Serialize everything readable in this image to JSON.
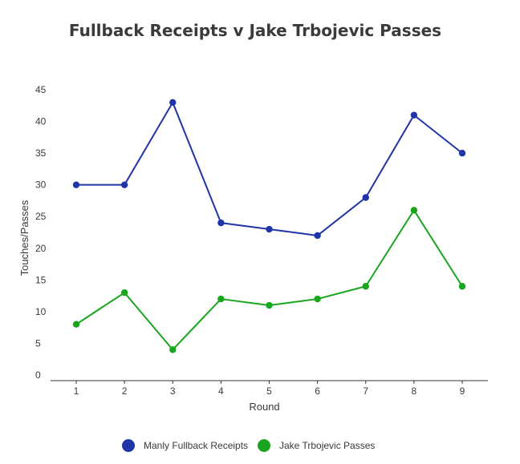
{
  "chart_data": {
    "type": "line",
    "title": "Fullback Receipts v Jake Trbojevic Passes",
    "xlabel": "Round",
    "ylabel": "Touches/Passes",
    "x": [
      1,
      2,
      3,
      4,
      5,
      6,
      7,
      8,
      9
    ],
    "ylim": [
      0,
      45
    ],
    "yticks": [
      0,
      5,
      10,
      15,
      20,
      25,
      30,
      35,
      40,
      45
    ],
    "grid": false,
    "legend": "bottom",
    "series": [
      {
        "name": "Manly Fullback Receipts",
        "color": "#1f35a5",
        "values": [
          30,
          30,
          43,
          24,
          23,
          22,
          28,
          41,
          35
        ]
      },
      {
        "name": "Jake Trbojevic Passes",
        "color": "#19a51e",
        "values": [
          8,
          13,
          4,
          12,
          11,
          12,
          14,
          26,
          14
        ]
      }
    ]
  }
}
